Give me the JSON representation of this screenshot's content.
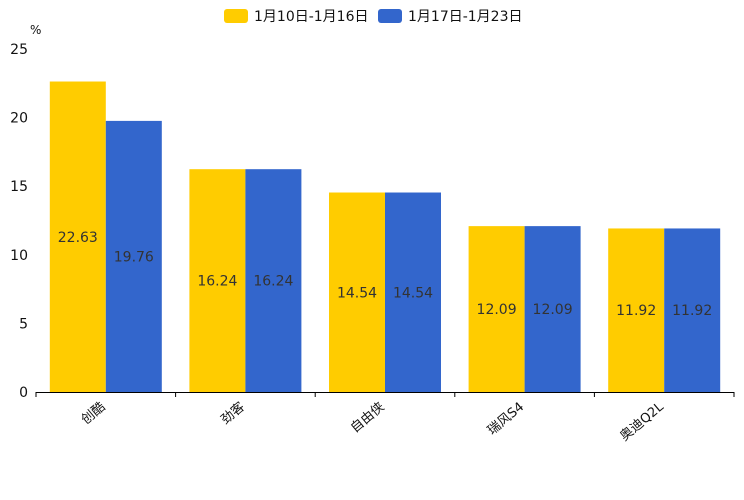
{
  "chart_data": {
    "type": "bar",
    "title": "",
    "xlabel": "",
    "ylabel": "%",
    "ylim": [
      0,
      25
    ],
    "yticks": [
      0,
      5,
      10,
      15,
      20,
      25
    ],
    "grid": false,
    "legend_position": "top-center",
    "categories": [
      "创酷",
      "劲客",
      "自由侠",
      "瑞风S4",
      "奥迪Q2L"
    ],
    "series": [
      {
        "name": "1月10日-1月16日",
        "color": "#FFCC00",
        "values": [
          22.63,
          16.24,
          14.54,
          12.09,
          11.92
        ]
      },
      {
        "name": "1月17日-1月23日",
        "color": "#3366CC",
        "values": [
          19.76,
          16.24,
          14.54,
          12.09,
          11.92
        ]
      }
    ]
  }
}
